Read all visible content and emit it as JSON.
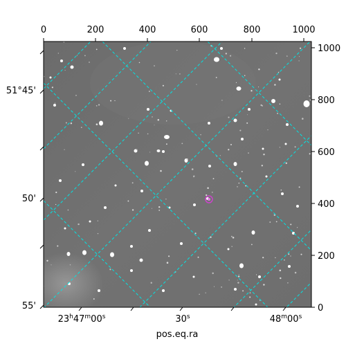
{
  "image": {
    "kind": "astronomical-sky-image",
    "colormap": "grayscale",
    "grid_color": "#00e5e5",
    "marker_color": "#cc44cc"
  },
  "axes": {
    "bottom_title": "pos.eq.ra",
    "top_ticks": [
      "0",
      "200",
      "400",
      "600",
      "800",
      "1000"
    ],
    "right_ticks": [
      "0",
      "200",
      "400",
      "600",
      "800",
      "1000"
    ],
    "left_ticks": [
      "51°45'",
      "50'",
      "55'"
    ],
    "bottom_ticks": [
      {
        "main": "23",
        "sup1": "h",
        "mid": "47",
        "sup2": "m",
        "end": "00",
        "sup3": "s"
      },
      {
        "main": "30",
        "sup1": "s"
      },
      {
        "main": "48",
        "sup1": "m",
        "mid": "00",
        "sup2": "s"
      }
    ]
  }
}
